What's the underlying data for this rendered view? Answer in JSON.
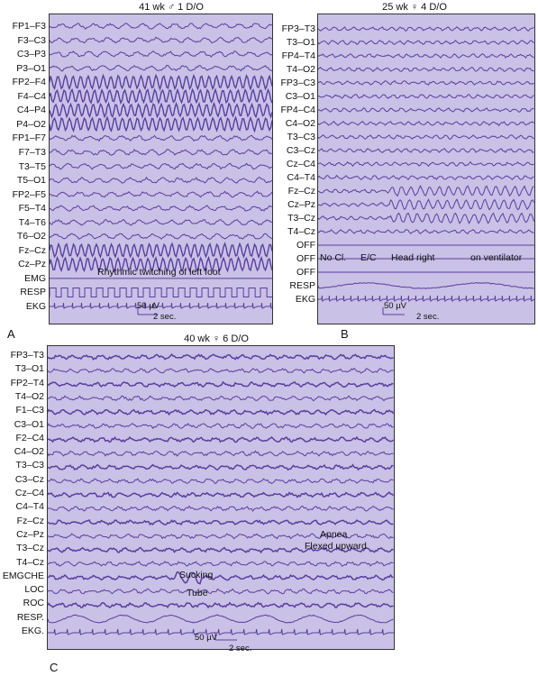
{
  "panels": [
    {
      "id": "A",
      "title": "41 wk ♂ 1 D/O",
      "letter": "A",
      "channels": [
        "FP1–F3",
        "F3–C3",
        "C3–P3",
        "P3–O1",
        "FP2–F4",
        "F4–C4",
        "C4–P4",
        "P4–O2",
        "FP1–F7",
        "F7–T3",
        "T3–T5",
        "T5–O1",
        "FP2–F5",
        "F5–T4",
        "T4–T6",
        "T6–O2",
        "Fz–Cz",
        "Cz–Pz",
        "EMG",
        "RESP",
        "EKG"
      ],
      "annotations": [
        "Rhythmic twitching of left foot"
      ],
      "scale_amp": "50 µV",
      "scale_time": "2 sec."
    },
    {
      "id": "B",
      "title": "25 wk ♀ 4 D/O",
      "letter": "B",
      "channels": [
        "FP3–T3",
        "T3–O1",
        "FP4–T4",
        "T4–O2",
        "FP3–C3",
        "C3–O1",
        "FP4–C4",
        "C4–O2",
        "T3–C3",
        "C3–Cz",
        "Cz–C4",
        "C4–T4",
        "Fz–Cz",
        "Cz–Pz",
        "T3–Cz",
        "T4–Cz",
        "OFF",
        "OFF",
        "OFF",
        "RESP",
        "EKG"
      ],
      "annotations": [
        "No Cl.",
        "E/C",
        "Head right",
        "on ventilator"
      ],
      "scale_amp": "50 µV",
      "scale_time": "2 sec."
    },
    {
      "id": "C",
      "title": "40 wk ♀ 6 D/O",
      "letter": "C",
      "channels": [
        "FP3–T3",
        "T3–O1",
        "FP2–T4",
        "T4–O2",
        "F1–C3",
        "C3–O1",
        "F2–C4",
        "C4–O2",
        "T3–C3",
        "C3–Cz",
        "Cz–C4",
        "C4–T4",
        "Fz–Cz",
        "Cz–Pz",
        "T3–Cz",
        "T4–Cz",
        "EMGCHE",
        "LOC",
        "ROC",
        "RESP.",
        "EKG."
      ],
      "annotations": [
        "Apnea",
        "Flexed upward",
        "Sucking",
        "Tube"
      ],
      "scale_amp": "50 µV",
      "scale_time": "2 sec."
    }
  ],
  "colors": {
    "background": "#c9c1e6",
    "trace": "#5a3e9e",
    "border": "#333333"
  }
}
